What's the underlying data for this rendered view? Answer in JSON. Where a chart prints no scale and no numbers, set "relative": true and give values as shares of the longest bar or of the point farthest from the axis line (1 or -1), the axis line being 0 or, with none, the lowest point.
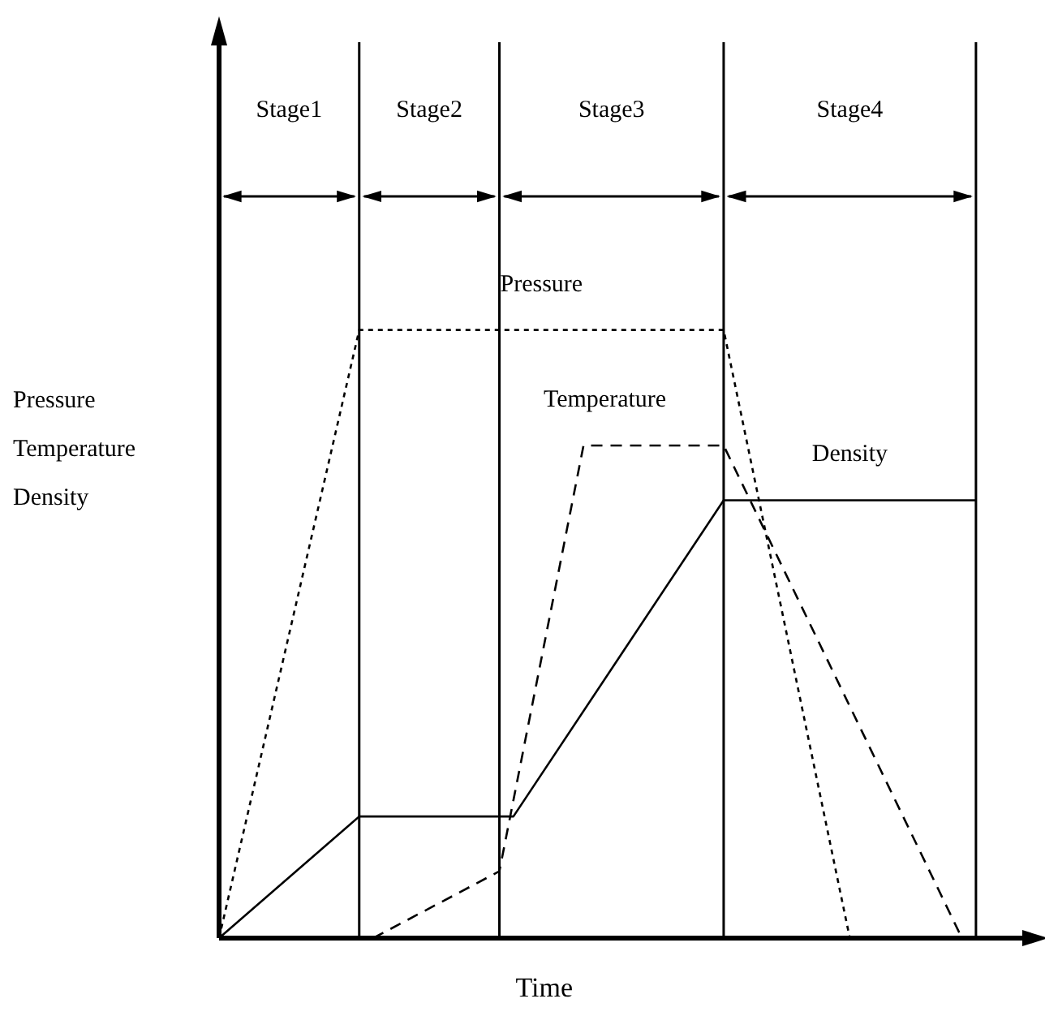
{
  "chart_data": {
    "type": "line",
    "xlabel": "Time",
    "ylabel": "Pressure\nTemperature\nDensity",
    "relative": true,
    "grid": "x",
    "legend": false,
    "marker": "none",
    "categories": [
      null,
      null,
      null,
      null,
      null,
      null,
      null,
      null,
      null,
      null,
      null,
      null,
      null,
      null,
      null,
      null,
      null,
      null,
      null,
      null,
      null,
      null,
      null,
      null,
      null,
      null,
      null,
      null,
      null,
      null,
      null,
      null,
      null,
      null,
      null,
      null,
      null,
      null,
      null,
      null,
      null,
      null,
      null,
      null,
      null,
      null,
      null,
      null,
      null,
      null,
      null,
      null,
      null,
      null,
      null,
      null,
      null,
      null,
      null
    ],
    "annotations": [
      "Stage1",
      "Stage2",
      "Stage3",
      "Stage4"
    ],
    "series": [
      {
        "name": "Pressure",
        "color": "#000000",
        "line_style": "dotted",
        "values": [
          0,
          null,
          null,
          null,
          null,
          null,
          null,
          null,
          null,
          null,
          1,
          null,
          null,
          null,
          null,
          null,
          null,
          null,
          null,
          null,
          null,
          null,
          null,
          null,
          null,
          null,
          null,
          null,
          null,
          null,
          null,
          null,
          null,
          null,
          null,
          null,
          1,
          null,
          null,
          null,
          null,
          null,
          null,
          null,
          null,
          0,
          null,
          null,
          null,
          null,
          null,
          null,
          null,
          null,
          null,
          null,
          null,
          null,
          null
        ]
      },
      {
        "name": "Temperature",
        "color": "#000000",
        "line_style": "dashed",
        "values": [
          null,
          null,
          null,
          null,
          null,
          null,
          null,
          null,
          null,
          null,
          null,
          0,
          null,
          null,
          null,
          null,
          null,
          null,
          null,
          null,
          0.11,
          null,
          null,
          null,
          null,
          null,
          0.81,
          null,
          null,
          null,
          null,
          null,
          null,
          null,
          null,
          null,
          0.81,
          null,
          null,
          null,
          null,
          null,
          null,
          null,
          null,
          null,
          null,
          null,
          null,
          null,
          null,
          null,
          null,
          0,
          null,
          null,
          null,
          null,
          null
        ]
      },
      {
        "name": "Density",
        "color": "#000000",
        "line_style": "solid",
        "values": [
          0,
          null,
          null,
          null,
          null,
          null,
          null,
          null,
          null,
          null,
          0.2,
          null,
          null,
          null,
          null,
          null,
          null,
          null,
          null,
          null,
          null,
          0.2,
          null,
          null,
          null,
          null,
          null,
          null,
          null,
          null,
          null,
          null,
          null,
          null,
          null,
          null,
          0.72,
          null,
          null,
          null,
          null,
          null,
          null,
          null,
          null,
          null,
          null,
          null,
          null,
          null,
          null,
          null,
          null,
          null,
          0.72,
          null,
          null,
          null,
          null
        ]
      }
    ]
  }
}
